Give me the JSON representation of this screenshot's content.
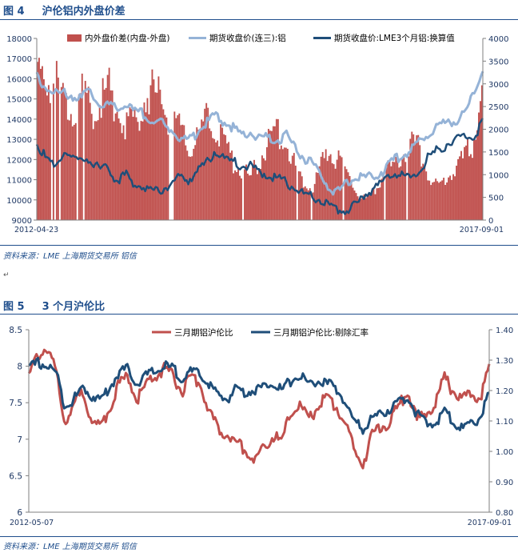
{
  "figure4": {
    "label": "图 4",
    "title": "沪伦铝内外盘价差",
    "source": "资料来源：LME    上海期货交易所   铝信"
  },
  "figure5": {
    "label": "图 5",
    "title": "3 个月沪伦比",
    "source": "资料来源：LME    上海期货交易所   铝信"
  },
  "colors": {
    "red": "#c0504d",
    "light_blue": "#95b3d7",
    "dark_blue": "#1f4e79",
    "title_blue": "#1f4e8c"
  },
  "chart_data": [
    {
      "type": "bar+line",
      "legend_position": "top",
      "x": {
        "start_label": "2012-04-23",
        "end_label": "2017-09-01"
      },
      "y_left": {
        "min": 9000,
        "max": 18000,
        "ticks": [
          9000,
          10000,
          11000,
          12000,
          13000,
          14000,
          15000,
          16000,
          17000,
          18000
        ]
      },
      "y_right": {
        "min": 0,
        "max": 4000,
        "ticks": [
          0,
          500,
          1000,
          1500,
          2000,
          2500,
          3000,
          3500,
          4000
        ]
      },
      "series": [
        {
          "name": "内外盘价差(内盘-外盘)",
          "kind": "bar",
          "axis": "right",
          "color": "#c0504d",
          "values": [
            3300,
            3550,
            3350,
            2950,
            2750,
            3000,
            2700,
            2850,
            3200,
            2800,
            2300,
            2400,
            2900,
            3100,
            2800,
            2450,
            2150,
            1750,
            1900,
            2400,
            2300,
            1850,
            1400,
            1200,
            1050,
            1500,
            1850,
            2200,
            1900,
            1300,
            950,
            800,
            1400,
            1600,
            1450,
            1100,
            600,
            500,
            700,
            1200,
            1300,
            1600,
            1950,
            1700,
            1000,
            800,
            1000,
            1300,
            1500,
            1900,
            3000
          ]
        },
        {
          "name": "期货收盘价(连三):铝",
          "kind": "line",
          "axis": "left",
          "color": "#95b3d7",
          "values": [
            16200,
            15700,
            15400,
            15400,
            15300,
            15200,
            15500,
            14900,
            14900,
            14600,
            14900,
            14500,
            14400,
            14000,
            13900,
            13600,
            13200,
            13000,
            13500,
            13900,
            14300,
            14000,
            13700,
            13400,
            13500,
            13200,
            13200,
            13100,
            13300,
            12600,
            12200,
            11900,
            11200,
            10700,
            10500,
            11100,
            11200,
            11200,
            11400,
            11600,
            12100,
            12400,
            12600,
            13000,
            13500,
            13800,
            13900,
            14100,
            14500,
            15300,
            16600
          ]
        },
        {
          "name": "期货收盘价:LME3个月铝:换算值",
          "kind": "line",
          "axis": "left",
          "color": "#1f4e79",
          "values": [
            13000,
            12200,
            11700,
            12600,
            12200,
            12100,
            12200,
            11600,
            11700,
            11100,
            11400,
            10900,
            10800,
            10600,
            10600,
            11000,
            11200,
            11100,
            11600,
            11900,
            12600,
            12200,
            12000,
            11800,
            11800,
            11500,
            11400,
            11200,
            11000,
            10700,
            10300,
            10300,
            10100,
            9700,
            9600,
            9700,
            9900,
            10500,
            10800,
            11000,
            11500,
            11300,
            11200,
            11600,
            12300,
            12600,
            12900,
            13100,
            13300,
            13300,
            14000
          ]
        }
      ]
    },
    {
      "type": "line",
      "legend_position": "top",
      "x": {
        "start_label": "2012-05-07",
        "end_label": "2017-09-01"
      },
      "y_left": {
        "min": 6,
        "max": 8.5,
        "ticks": [
          6,
          6.5,
          7,
          7.5,
          8,
          8.5
        ]
      },
      "y_right": {
        "min": 0.8,
        "max": 1.4,
        "ticks": [
          "0.80",
          "0.90",
          "1.00",
          "1.10",
          "1.20",
          "1.30",
          "1.40"
        ]
      },
      "series": [
        {
          "name": "三月期铝沪伦比",
          "axis": "left",
          "color": "#c0504d",
          "values": [
            7.9,
            8.2,
            8.3,
            8.0,
            7.3,
            7.5,
            7.7,
            7.3,
            7.2,
            7.5,
            7.8,
            7.9,
            7.6,
            7.8,
            7.9,
            8.0,
            7.9,
            7.7,
            7.9,
            7.8,
            7.4,
            7.2,
            7.1,
            7.0,
            6.9,
            6.75,
            6.9,
            7.1,
            7.0,
            7.4,
            7.5,
            7.3,
            7.5,
            7.6,
            7.5,
            7.3,
            6.9,
            6.7,
            7.1,
            7.2,
            7.3,
            7.5,
            7.7,
            7.3,
            7.4,
            7.5,
            7.9,
            7.7,
            7.6,
            7.7,
            7.6,
            8.05
          ]
        },
        {
          "name": "三月期铝沪伦比:剔除汇率",
          "axis": "right",
          "color": "#1f4e79",
          "values": [
            1.28,
            1.3,
            1.29,
            1.27,
            1.16,
            1.18,
            1.22,
            1.19,
            1.18,
            1.22,
            1.27,
            1.28,
            1.23,
            1.26,
            1.27,
            1.29,
            1.28,
            1.25,
            1.27,
            1.26,
            1.23,
            1.19,
            1.18,
            1.22,
            1.2,
            1.21,
            1.22,
            1.24,
            1.21,
            1.24,
            1.26,
            1.23,
            1.24,
            1.23,
            1.22,
            1.17,
            1.11,
            1.08,
            1.12,
            1.13,
            1.15,
            1.17,
            1.19,
            1.13,
            1.1,
            1.1,
            1.14,
            1.11,
            1.08,
            1.1,
            1.12,
            1.2
          ]
        }
      ]
    }
  ]
}
